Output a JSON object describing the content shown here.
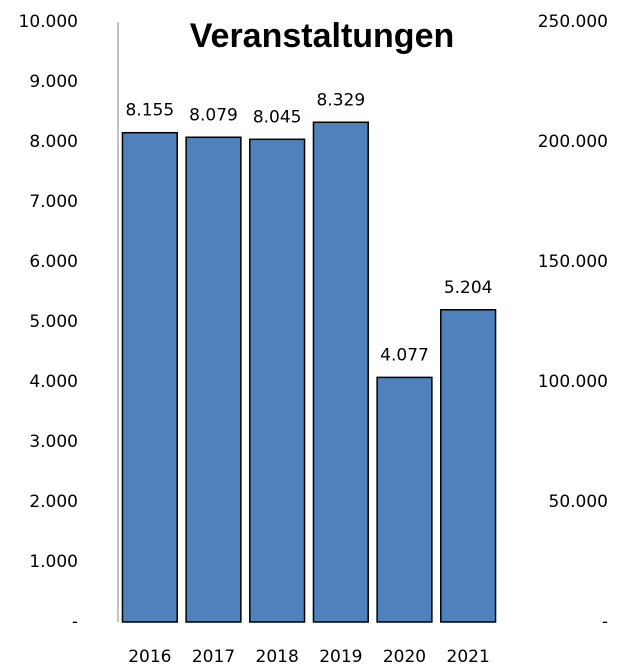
{
  "chart_data": {
    "type": "bar",
    "title": "Veranstaltungen",
    "categories": [
      "2016",
      "2017",
      "2018",
      "2019",
      "2020",
      "2021"
    ],
    "values": [
      8155,
      8079,
      8045,
      8329,
      4077,
      5204
    ],
    "value_labels": [
      "8.155",
      "8.079",
      "8.045",
      "8.329",
      "4.077",
      "5.204"
    ],
    "color": "#4f81bd",
    "ylim": [
      0,
      10000
    ],
    "yticks": [
      {
        "value": 0,
        "label": "-"
      },
      {
        "value": 1000,
        "label": "1.000"
      },
      {
        "value": 2000,
        "label": "2.000"
      },
      {
        "value": 3000,
        "label": "3.000"
      },
      {
        "value": 4000,
        "label": "4.000"
      },
      {
        "value": 5000,
        "label": "5.000"
      },
      {
        "value": 6000,
        "label": "6.000"
      },
      {
        "value": 7000,
        "label": "7.000"
      },
      {
        "value": 8000,
        "label": "8.000"
      },
      {
        "value": 9000,
        "label": "9.000"
      },
      {
        "value": 10000,
        "label": "10.000"
      }
    ],
    "y2lim": [
      0,
      250000
    ],
    "y2ticks": [
      {
        "value": 0,
        "label": "-"
      },
      {
        "value": 50000,
        "label": "50.000"
      },
      {
        "value": 100000,
        "label": "100.000"
      },
      {
        "value": 150000,
        "label": "150.000"
      },
      {
        "value": 200000,
        "label": "200.000"
      },
      {
        "value": 250000,
        "label": "250.000"
      }
    ],
    "grid": false
  }
}
